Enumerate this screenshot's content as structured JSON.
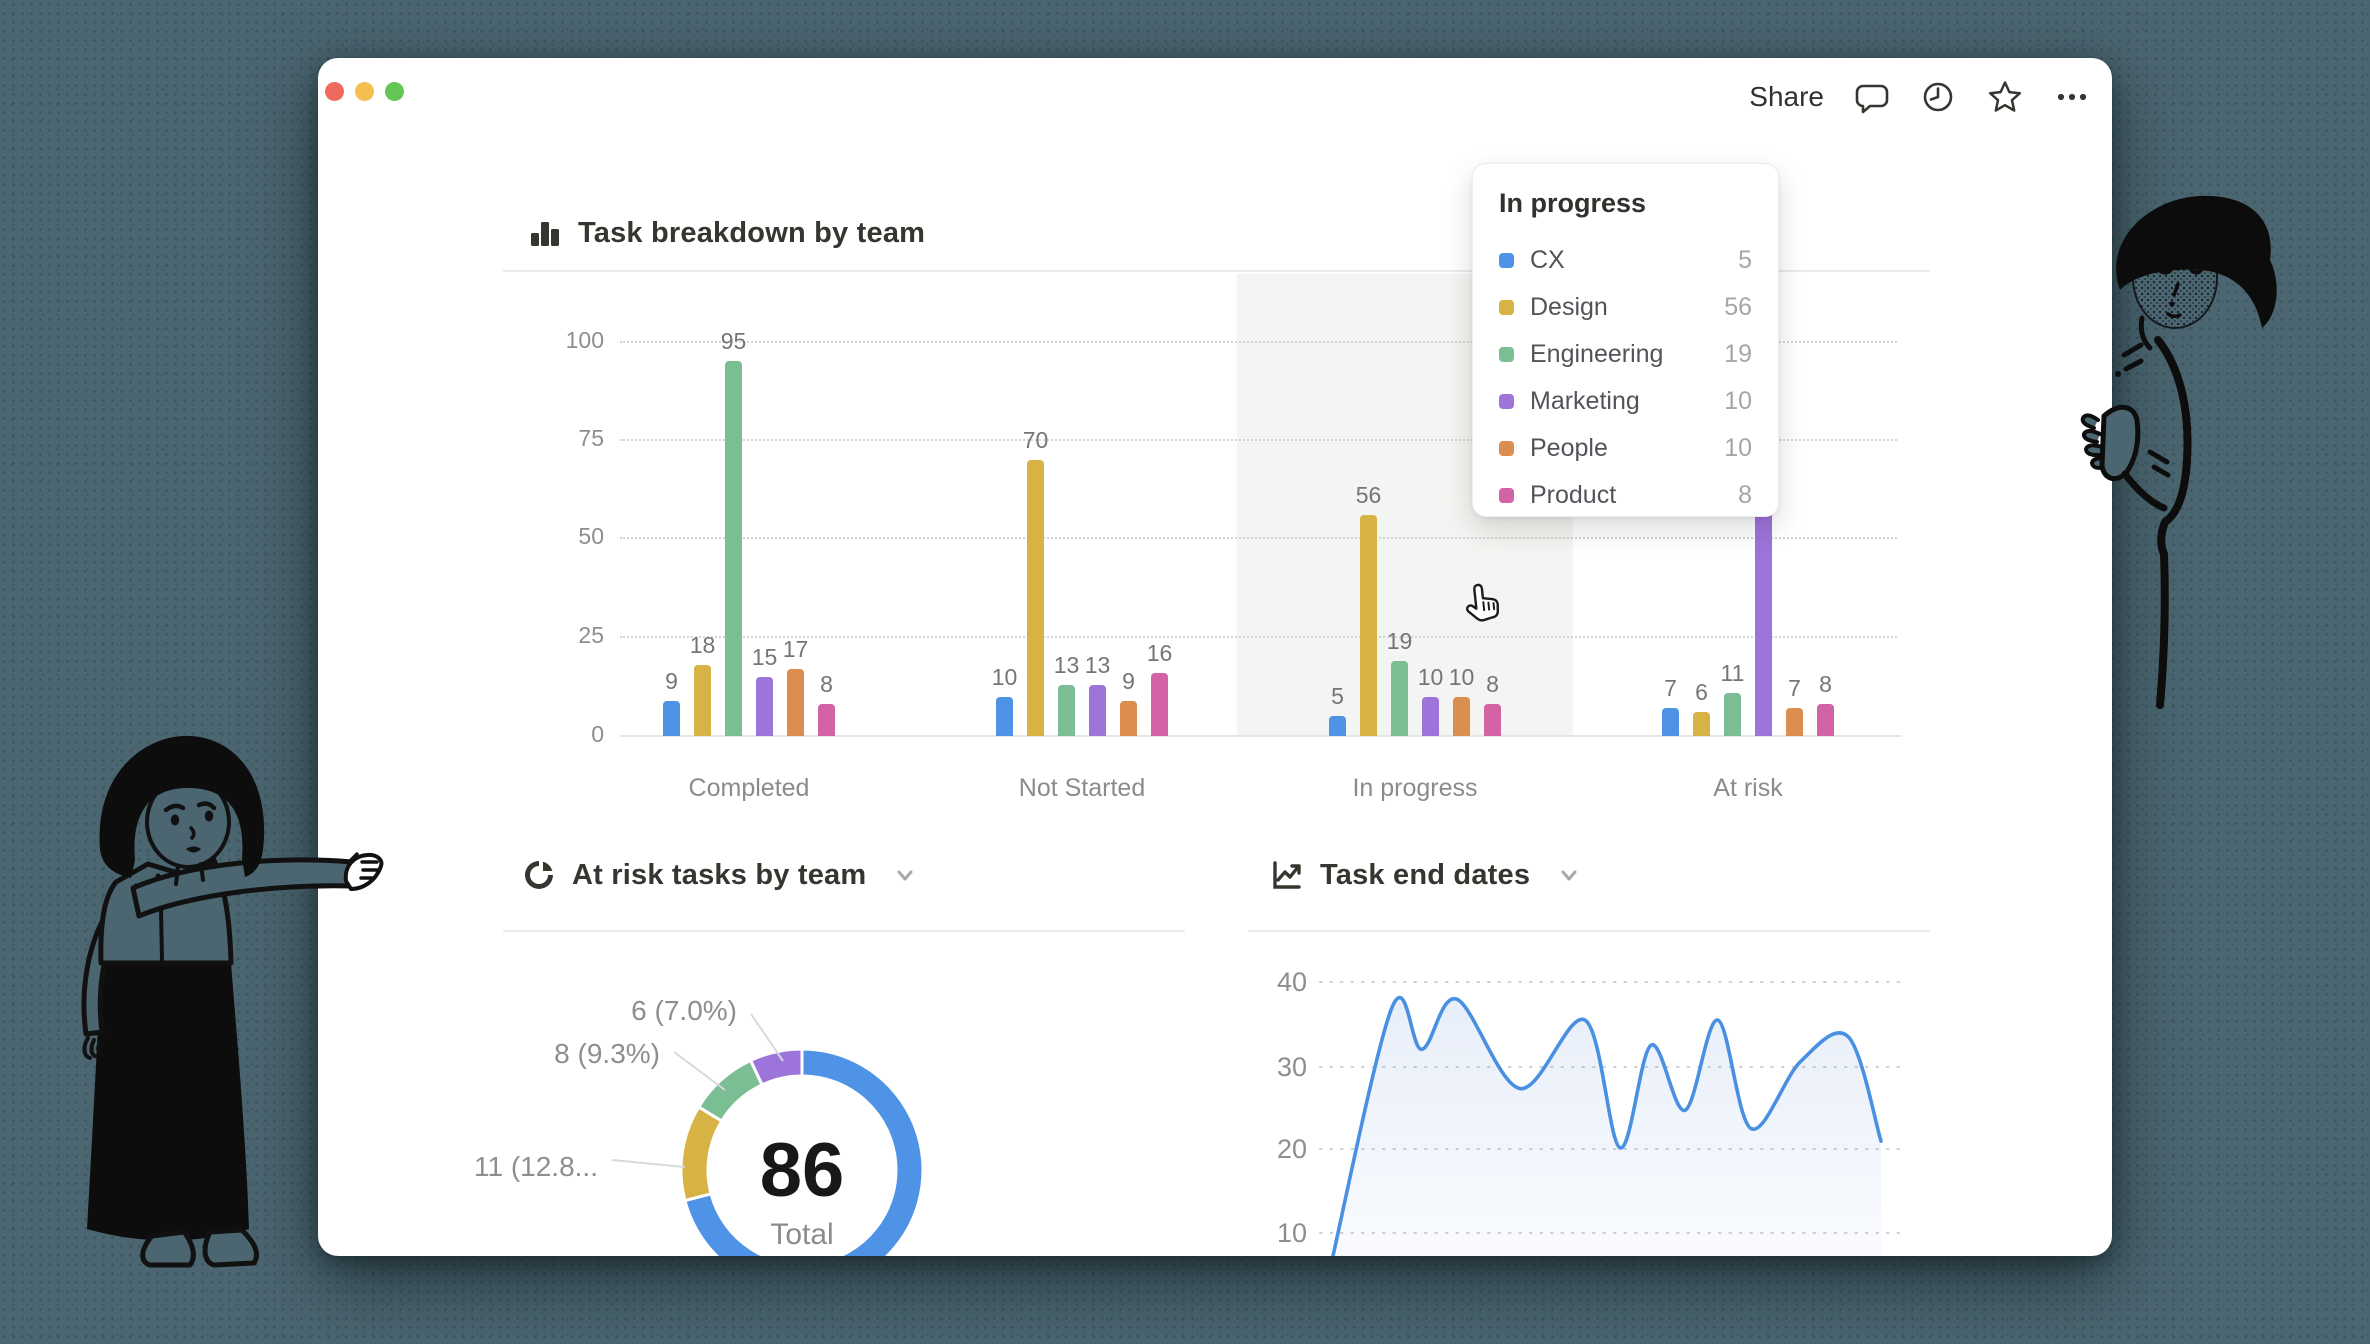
{
  "window_controls": {
    "close_color": "#ee6a5e",
    "minimize_color": "#f5bf4f",
    "zoom_color": "#62c554"
  },
  "toolbar": {
    "share_label": "Share"
  },
  "tooltip": {
    "title": "In progress",
    "rows": [
      {
        "label": "CX",
        "value": "5",
        "color": "#4e93e6"
      },
      {
        "label": "Design",
        "value": "56",
        "color": "#d7b245"
      },
      {
        "label": "Engineering",
        "value": "19",
        "color": "#7cbe93"
      },
      {
        "label": "Marketing",
        "value": "10",
        "color": "#9d74da"
      },
      {
        "label": "People",
        "value": "10",
        "color": "#dc8e4f"
      },
      {
        "label": "Product",
        "value": "8",
        "color": "#d263a5"
      }
    ]
  },
  "chart_data": [
    {
      "type": "bar",
      "title": "Task breakdown by team",
      "categories": [
        "Completed",
        "Not Started",
        "In progress",
        "At risk"
      ],
      "y_ticks": [
        "0",
        "25",
        "50",
        "75",
        "100"
      ],
      "ylim": [
        0,
        100
      ],
      "grid": "dotted horizontal",
      "highlighted_category": "In progress",
      "series": [
        {
          "name": "CX",
          "color": "#4e93e6",
          "values": [
            9,
            10,
            5,
            7
          ]
        },
        {
          "name": "Design",
          "color": "#d7b245",
          "values": [
            18,
            70,
            56,
            6
          ]
        },
        {
          "name": "Engineering",
          "color": "#7cbe93",
          "values": [
            95,
            13,
            19,
            11
          ]
        },
        {
          "name": "Marketing",
          "color": "#9d74da",
          "values": [
            15,
            13,
            10,
            58
          ]
        },
        {
          "name": "People",
          "color": "#dc8e4f",
          "values": [
            17,
            9,
            10,
            7
          ]
        },
        {
          "name": "Product",
          "color": "#d263a5",
          "values": [
            8,
            16,
            8,
            8
          ]
        }
      ],
      "hidden_value_labels": [
        [
          3,
          3
        ]
      ]
    },
    {
      "type": "pie",
      "title": "At risk tasks by team",
      "center_value": "86",
      "center_label": "Total",
      "slices": [
        {
          "value": 61,
          "color": "#4e93e6",
          "label": ""
        },
        {
          "value": 11,
          "color": "#d7b245",
          "label": "11 (12.8..."
        },
        {
          "value": 8,
          "color": "#7cbe93",
          "label": "8 (9.3%)"
        },
        {
          "value": 6,
          "color": "#9d74da",
          "label": "6 (7.0%)"
        }
      ],
      "start": "top, clockwise: blue, yellow, green, purple"
    },
    {
      "type": "area",
      "title": "Task end dates",
      "y_ticks": [
        "10",
        "20",
        "30",
        "40"
      ],
      "ylim": [
        10,
        40
      ],
      "line_color": "#4a90e2",
      "x_unit": "percent of plot width (no x labels visible)",
      "points": [
        {
          "x": 1.5,
          "y": 5
        },
        {
          "x": 12.3,
          "y": 37
        },
        {
          "x": 17.4,
          "y": 32
        },
        {
          "x": 23.4,
          "y": 38
        },
        {
          "x": 34.2,
          "y": 27.3
        },
        {
          "x": 45.3,
          "y": 35.5
        },
        {
          "x": 51.3,
          "y": 20.2
        },
        {
          "x": 56.6,
          "y": 32.5
        },
        {
          "x": 62.4,
          "y": 24.7
        },
        {
          "x": 68.0,
          "y": 35.5
        },
        {
          "x": 73.7,
          "y": 22.5
        },
        {
          "x": 82.1,
          "y": 30.5
        },
        {
          "x": 90.3,
          "y": 33.5
        },
        {
          "x": 95.9,
          "y": 21
        }
      ]
    }
  ]
}
